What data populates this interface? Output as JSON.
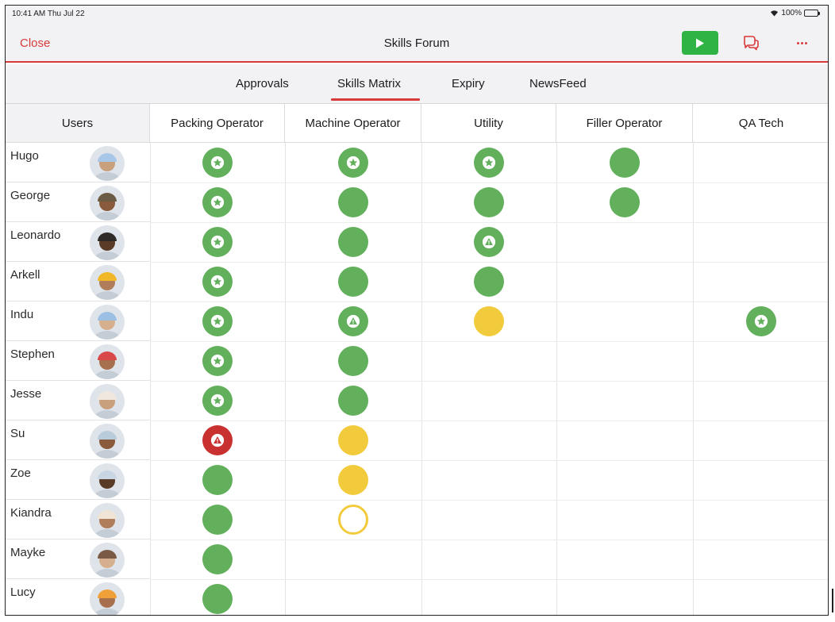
{
  "status_bar": {
    "time": "10:41 AM  Thu Jul 22",
    "battery": "100%"
  },
  "nav": {
    "close_label": "Close",
    "title": "Skills Forum"
  },
  "tabs": [
    {
      "label": "Approvals"
    },
    {
      "label": "Skills Matrix"
    },
    {
      "label": "Expiry"
    },
    {
      "label": "NewsFeed"
    }
  ],
  "active_tab": "Skills Matrix",
  "colors": {
    "accent": "#d83a3a",
    "green": "#62b05c",
    "yellow": "#f2cb3c",
    "red": "#c93030",
    "play": "#2fb344"
  },
  "matrix": {
    "users_header": "Users",
    "columns": [
      "Packing Operator",
      "Machine Operator",
      "Utility",
      "Filler Operator",
      "QA Tech"
    ],
    "rows": [
      {
        "name": "Hugo",
        "cells": [
          "green-star",
          "green-star",
          "green-star",
          "green",
          ""
        ]
      },
      {
        "name": "George",
        "cells": [
          "green-star",
          "green",
          "green",
          "green",
          ""
        ]
      },
      {
        "name": "Leonardo",
        "cells": [
          "green-star",
          "green",
          "green-warning",
          "",
          ""
        ]
      },
      {
        "name": "Arkell",
        "cells": [
          "green-star",
          "green",
          "green",
          "",
          ""
        ]
      },
      {
        "name": "Indu",
        "cells": [
          "green-star",
          "green-warning",
          "yellow",
          "",
          "green-star"
        ]
      },
      {
        "name": "Stephen",
        "cells": [
          "green-star",
          "green",
          "",
          "",
          ""
        ]
      },
      {
        "name": "Jesse",
        "cells": [
          "green-star",
          "green",
          "",
          "",
          ""
        ]
      },
      {
        "name": "Su",
        "cells": [
          "red-warning",
          "yellow",
          "",
          "",
          ""
        ]
      },
      {
        "name": "Zoe",
        "cells": [
          "green",
          "yellow",
          "",
          "",
          ""
        ]
      },
      {
        "name": "Kiandra",
        "cells": [
          "green",
          "yellow-outline",
          "",
          "",
          ""
        ]
      },
      {
        "name": "Mayke",
        "cells": [
          "green",
          "",
          "",
          "",
          ""
        ]
      },
      {
        "name": "Lucy",
        "cells": [
          "green",
          "",
          "",
          "",
          ""
        ]
      }
    ]
  }
}
